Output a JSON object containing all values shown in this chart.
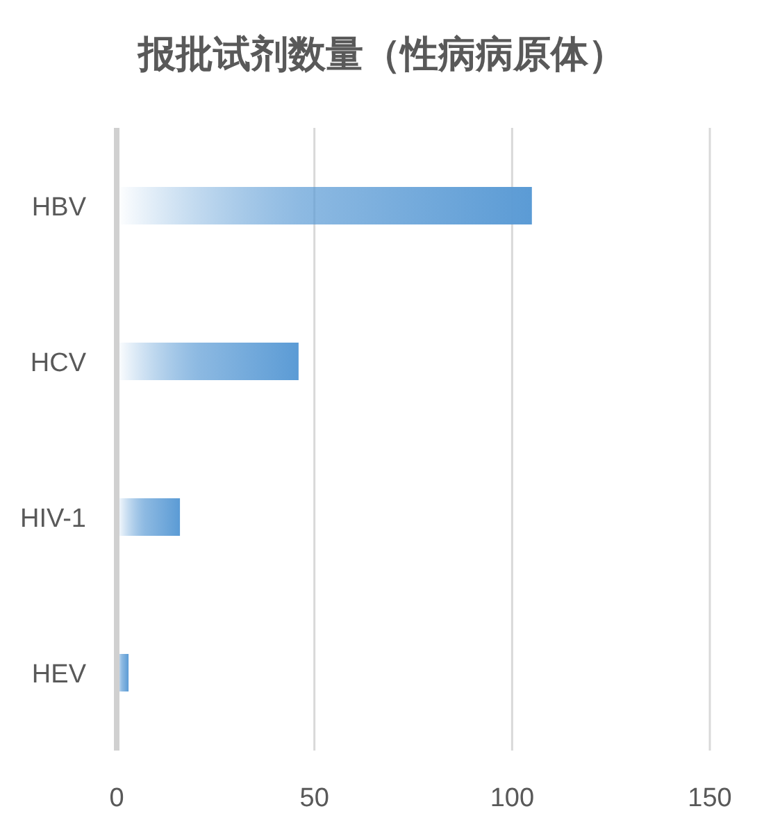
{
  "chart_data": {
    "type": "bar",
    "orientation": "horizontal",
    "title": "报批试剂数量（性病病原体）",
    "categories": [
      "HBV",
      "HCV",
      "HIV-1",
      "HEV"
    ],
    "values": [
      105,
      46,
      16,
      3
    ],
    "color": "#5b9bd5",
    "xlim": [
      0,
      150
    ],
    "xticks": [
      0,
      50,
      100,
      150
    ],
    "grid": "x"
  }
}
